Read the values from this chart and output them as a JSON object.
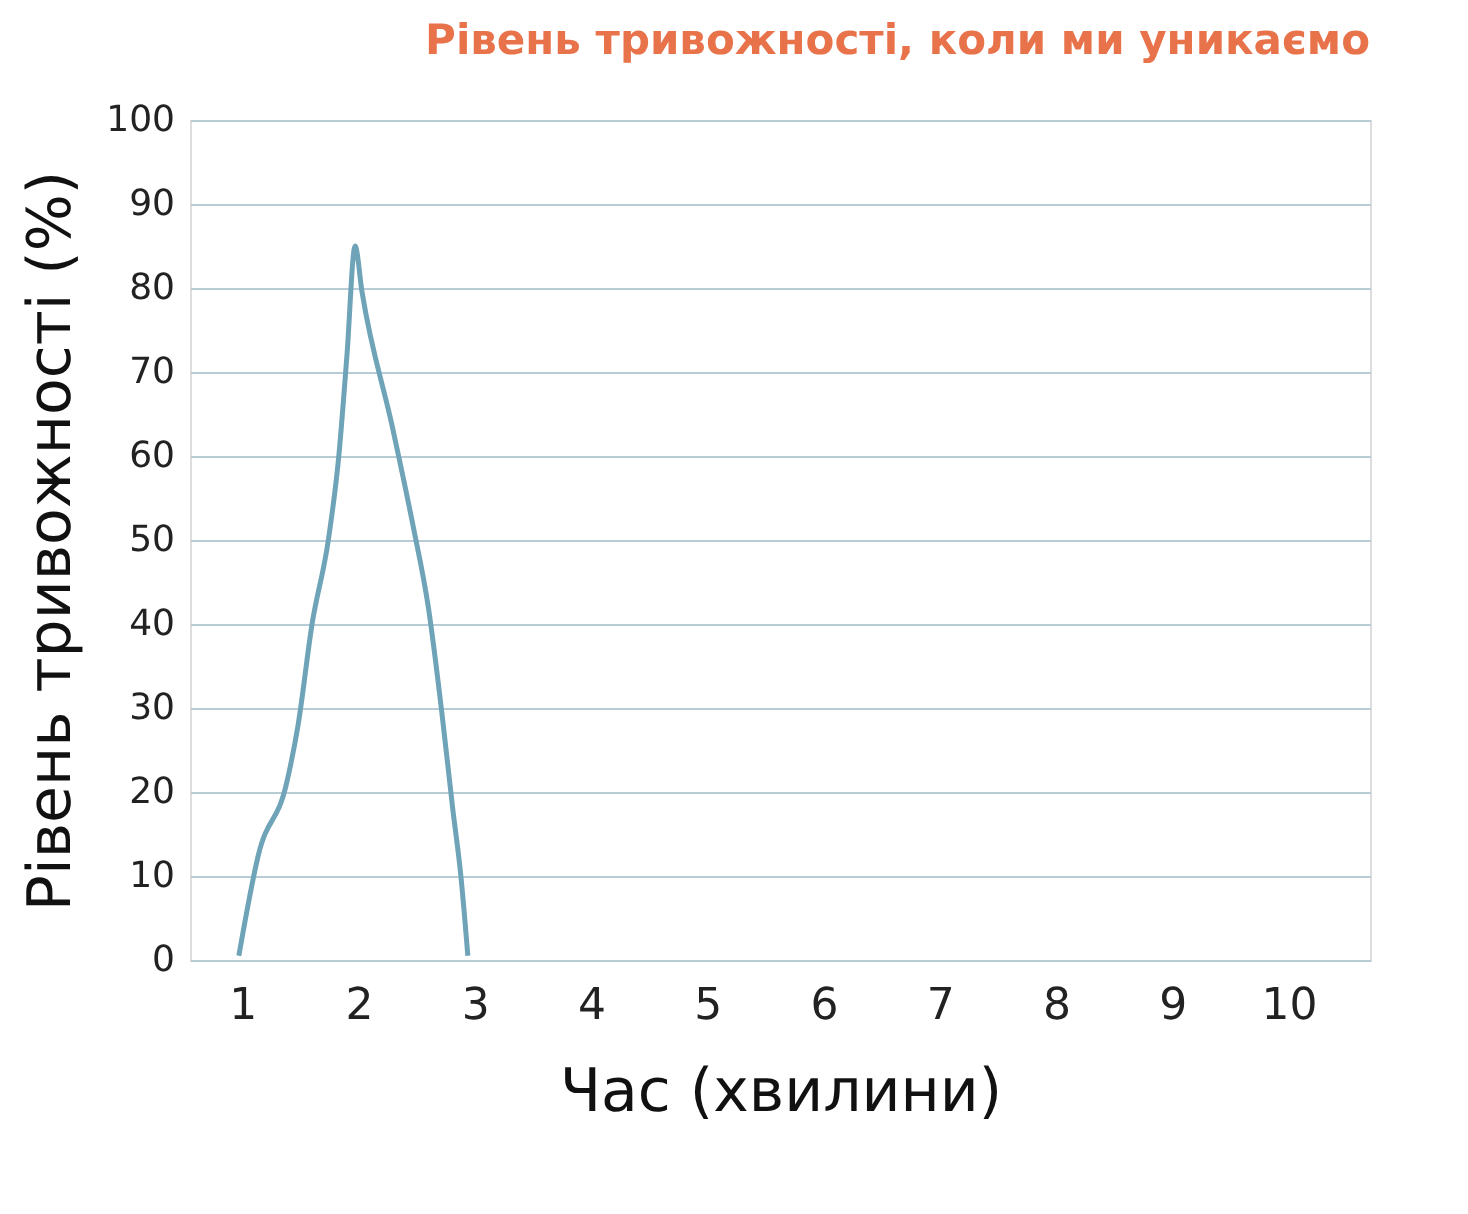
{
  "chart_data": {
    "type": "line",
    "title": "Рівень тривожності, коли ми уникаємо",
    "xlabel": "Час (хвилини)",
    "ylabel": "Рівень тривожності (%)",
    "series": [
      {
        "color": "#6fa3b8",
        "x": [
          0.97,
          1.14,
          1.38,
          1.48,
          1.6,
          1.74,
          1.83,
          1.9,
          1.97,
          2.03,
          2.29,
          2.47,
          2.6,
          2.72,
          2.81,
          2.88,
          2.94
        ],
        "values": [
          0.5,
          12.6,
          21,
          28,
          40,
          50,
          60,
          72,
          85,
          79.5,
          63.5,
          51.6,
          42,
          29,
          18,
          10,
          0.5
        ]
      }
    ],
    "xlim": [
      0.55,
      10.7
    ],
    "xticks": [
      1,
      2,
      3,
      4,
      5,
      6,
      7,
      8,
      9,
      10
    ],
    "ylim": [
      0,
      100
    ],
    "yticks": [
      0,
      10,
      20,
      30,
      40,
      50,
      60,
      70,
      80,
      90,
      100
    ],
    "grid": "y",
    "marker": "none",
    "line_style": "solid"
  }
}
